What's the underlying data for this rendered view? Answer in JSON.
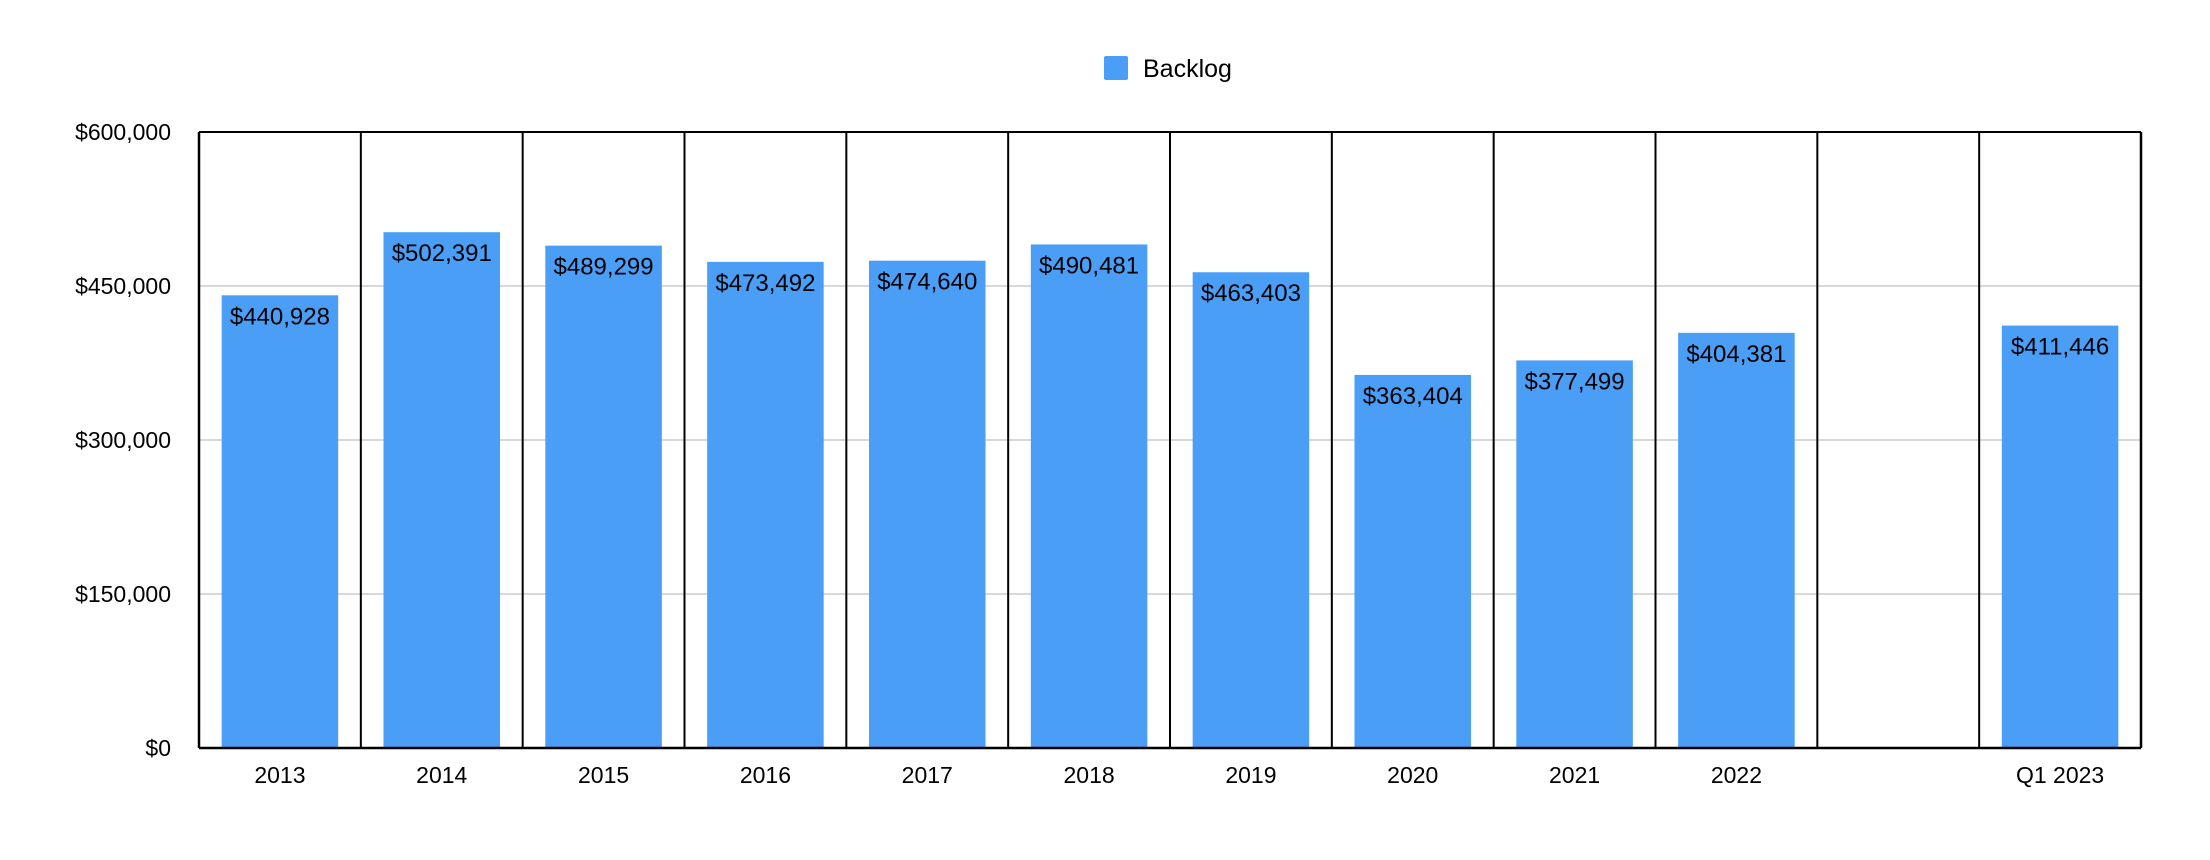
{
  "chart_data": {
    "type": "bar",
    "categories": [
      "2013",
      "2014",
      "2015",
      "2016",
      "2017",
      "2018",
      "2019",
      "2020",
      "2021",
      "2022",
      "",
      "Q1 2023"
    ],
    "series": [
      {
        "name": "Backlog",
        "values": [
          440928,
          502391,
          489299,
          473492,
          474640,
          490481,
          463403,
          363404,
          377499,
          404381,
          null,
          411446
        ],
        "labels": [
          "$440,928",
          "$502,391",
          "$489,299",
          "$473,492",
          "$474,640",
          "$490,481",
          "$463,403",
          "$363,404",
          "$377,499",
          "$404,381",
          "",
          "$411,446"
        ]
      }
    ],
    "yticks": [
      0,
      150000,
      300000,
      450000,
      600000
    ],
    "ytick_labels": [
      "$0",
      "$150,000",
      "$300,000",
      "$450,000",
      "$600,000"
    ],
    "ylim": [
      0,
      600000
    ],
    "title": "",
    "xlabel": "",
    "ylabel": "",
    "legend": "top-center",
    "grid": true,
    "colors": {
      "bar": "#4A9EF5",
      "grid": "#cccccc",
      "axis": "#000000"
    }
  }
}
